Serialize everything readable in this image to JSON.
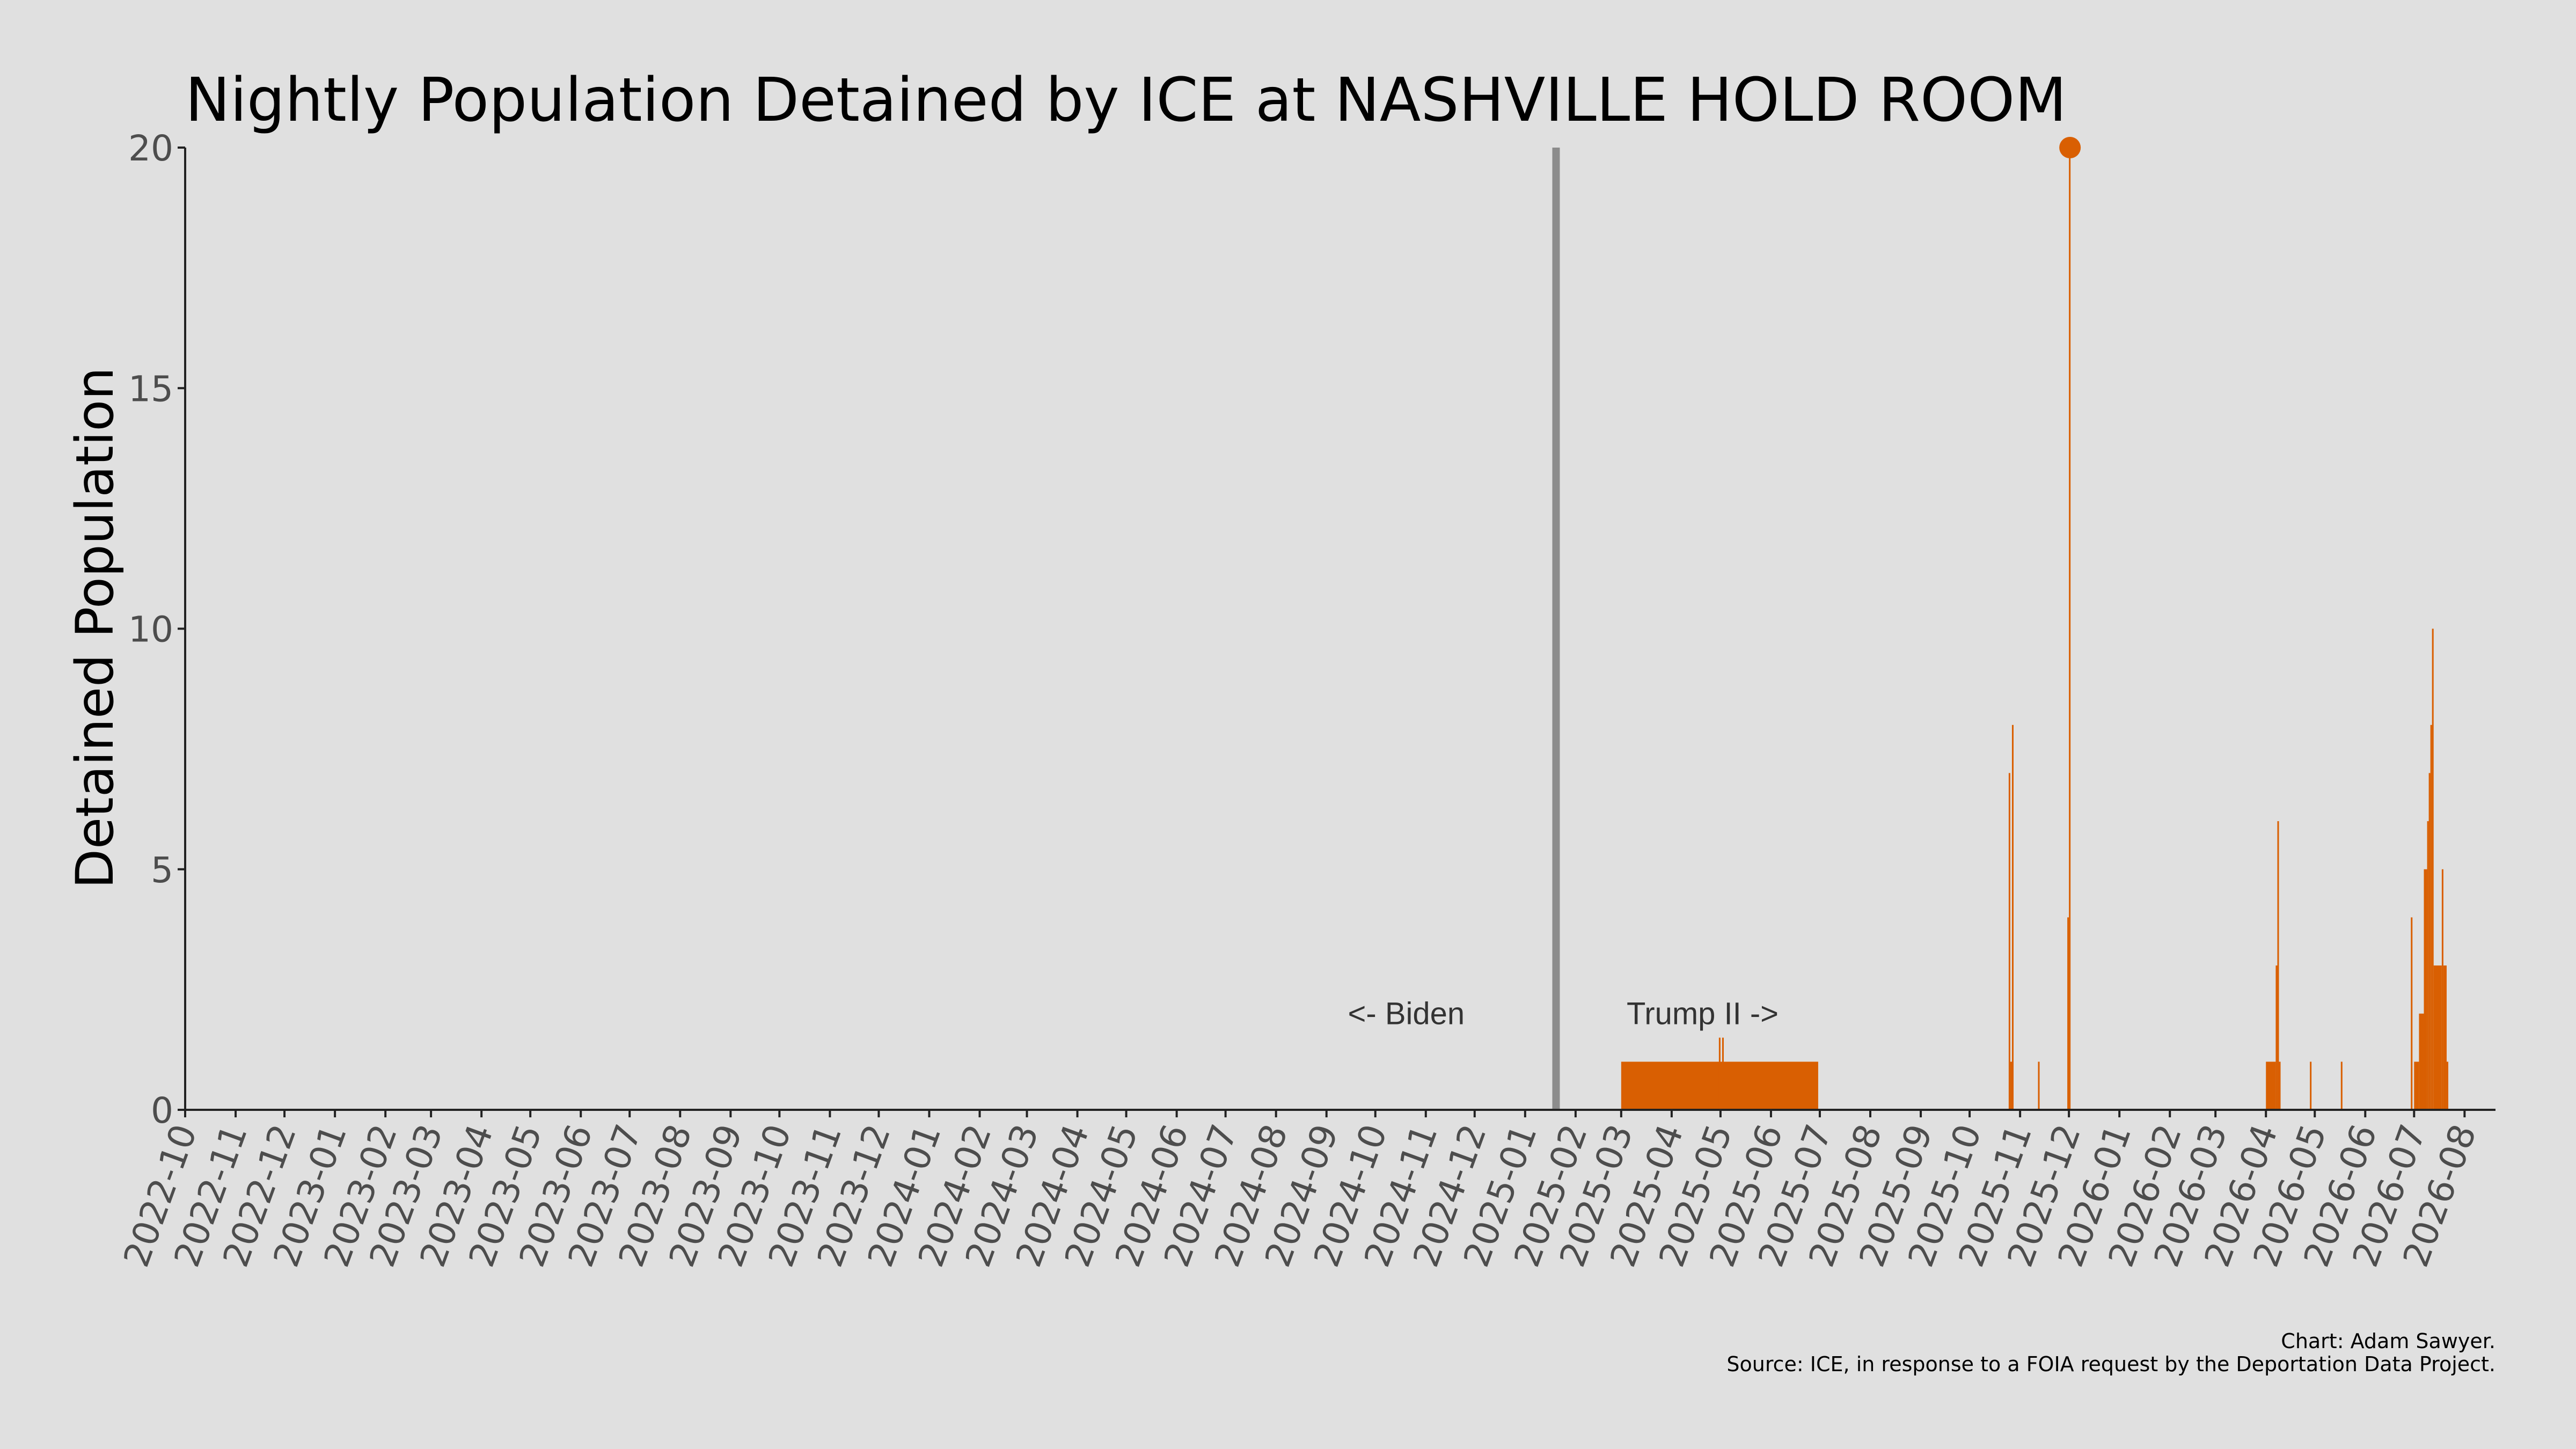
{
  "chart_data": {
    "type": "bar",
    "title": "Nightly Population Detained by ICE at NASHVILLE HOLD ROOM",
    "xlabel": "",
    "ylabel": "Detained Population",
    "ylim": [
      0,
      20
    ],
    "yticks": [
      0,
      5,
      10,
      15,
      20
    ],
    "xlim": [
      "2022-10-01",
      "2026-08-20"
    ],
    "xticks": [
      "2022-10",
      "2022-11",
      "2022-12",
      "2023-01",
      "2023-02",
      "2023-03",
      "2023-04",
      "2023-05",
      "2023-06",
      "2023-07",
      "2023-08",
      "2023-09",
      "2023-10",
      "2023-11",
      "2023-12",
      "2024-01",
      "2024-02",
      "2024-03",
      "2024-04",
      "2024-05",
      "2024-06",
      "2024-07",
      "2024-08",
      "2024-09",
      "2024-10",
      "2024-11",
      "2024-12",
      "2025-01",
      "2025-02",
      "2025-03",
      "2025-04",
      "2025-05",
      "2025-06",
      "2025-07",
      "2025-08",
      "2025-09",
      "2025-10",
      "2025-11",
      "2025-12",
      "2026-01",
      "2026-02",
      "2026-03",
      "2026-04",
      "2026-05",
      "2026-06",
      "2026-07",
      "2026-08"
    ],
    "grid": false,
    "bar_color": "#d95f02",
    "divider": {
      "date": "2025-01-20",
      "color": "#8c8c8c"
    },
    "annotations": [
      {
        "text": "<- Biden",
        "date": "2024-10-20",
        "y": 2
      },
      {
        "text": "Trump II ->",
        "date": "2025-04-20",
        "y": 2
      }
    ],
    "series": [
      {
        "bars": [
          {
            "start": "2025-03-01",
            "end": "2025-06-30",
            "value": 1
          },
          {
            "start": "2025-04-30",
            "end": "2025-05-01",
            "value": 1.5
          },
          {
            "start": "2025-05-02",
            "end": "2025-05-03",
            "value": 1.5
          },
          {
            "start": "2025-10-25",
            "end": "2025-10-26",
            "value": 7
          },
          {
            "start": "2025-10-26",
            "end": "2025-10-27",
            "value": 1
          },
          {
            "start": "2025-10-27",
            "end": "2025-10-28",
            "value": 8
          },
          {
            "start": "2025-11-12",
            "end": "2025-11-13",
            "value": 1
          },
          {
            "start": "2025-11-30",
            "end": "2025-12-01",
            "value": 4
          },
          {
            "start": "2025-12-01",
            "end": "2025-12-02",
            "value": 20
          },
          {
            "start": "2026-04-01",
            "end": "2026-04-07",
            "value": 1
          },
          {
            "start": "2026-04-07",
            "end": "2026-04-08",
            "value": 3
          },
          {
            "start": "2026-04-08",
            "end": "2026-04-09",
            "value": 6
          },
          {
            "start": "2026-04-09",
            "end": "2026-04-10",
            "value": 1
          },
          {
            "start": "2026-04-28",
            "end": "2026-04-29",
            "value": 1
          },
          {
            "start": "2026-05-17",
            "end": "2026-05-18",
            "value": 1
          },
          {
            "start": "2026-06-29",
            "end": "2026-06-30",
            "value": 4
          },
          {
            "start": "2026-07-01",
            "end": "2026-07-04",
            "value": 1
          },
          {
            "start": "2026-07-04",
            "end": "2026-07-07",
            "value": 2
          },
          {
            "start": "2026-07-07",
            "end": "2026-07-09",
            "value": 5
          },
          {
            "start": "2026-07-09",
            "end": "2026-07-10",
            "value": 6
          },
          {
            "start": "2026-07-10",
            "end": "2026-07-11",
            "value": 7
          },
          {
            "start": "2026-07-11",
            "end": "2026-07-12",
            "value": 8
          },
          {
            "start": "2026-07-12",
            "end": "2026-07-13",
            "value": 10
          },
          {
            "start": "2026-07-13",
            "end": "2026-07-18",
            "value": 3
          },
          {
            "start": "2026-07-18",
            "end": "2026-07-19",
            "value": 5
          },
          {
            "start": "2026-07-19",
            "end": "2026-07-21",
            "value": 3
          },
          {
            "start": "2026-07-21",
            "end": "2026-07-22",
            "value": 1
          }
        ]
      }
    ],
    "markers": [
      {
        "date": "2025-12-01",
        "value": 20
      }
    ]
  },
  "caption": {
    "line1": "Chart: Adam Sawyer.",
    "line2": "Source: ICE, in response to a FOIA request by the Deportation Data Project."
  }
}
